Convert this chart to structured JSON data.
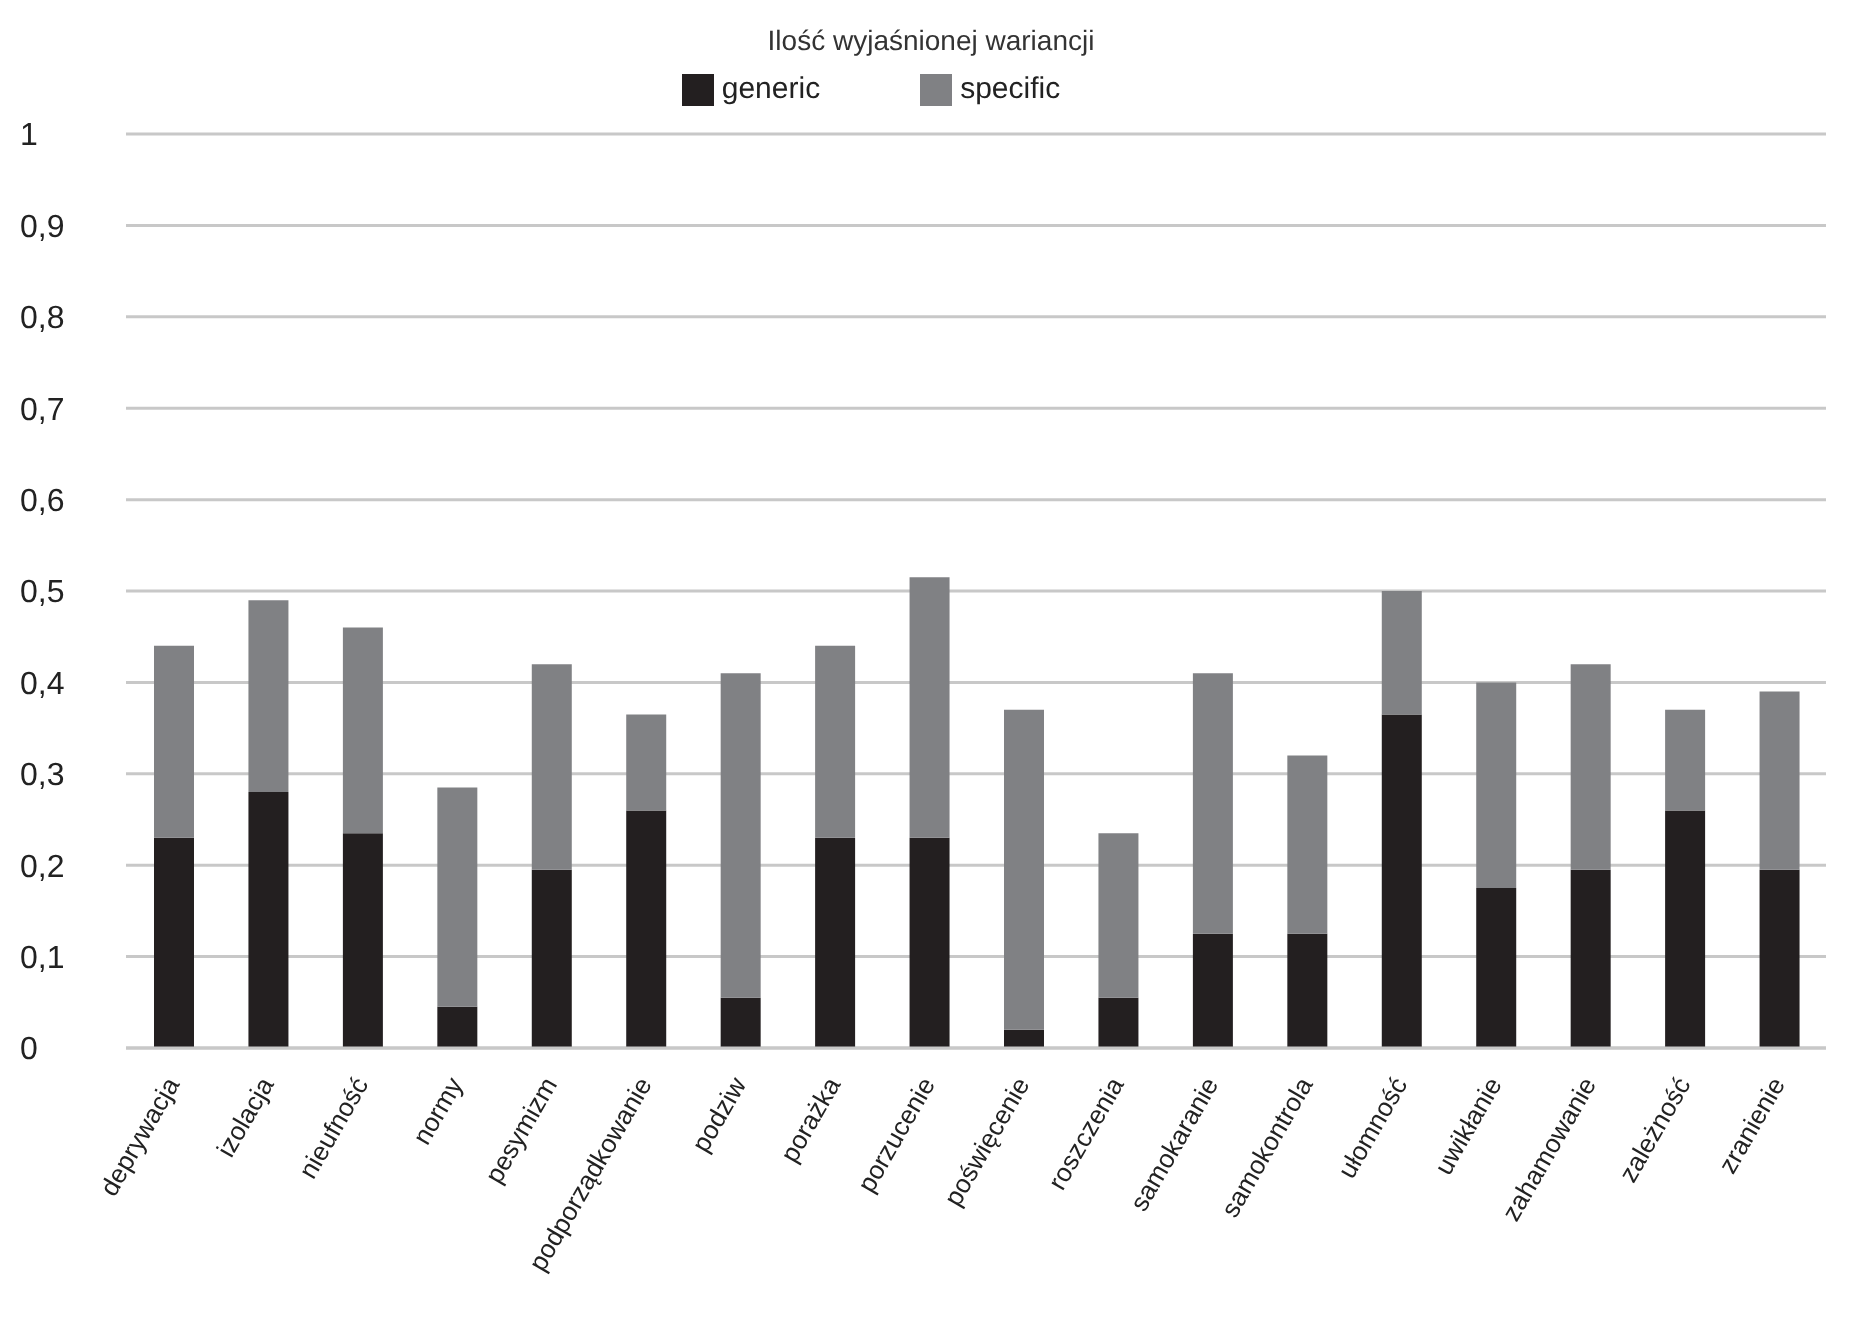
{
  "chart_data": {
    "type": "bar",
    "title": "Ilość wyjaśnionej wariancji",
    "stacked": true,
    "legend": "top",
    "grid": "y",
    "categories": [
      "deprywacja",
      "izolacja",
      "nieufność",
      "normy",
      "pesymizm",
      "podporządkowanie",
      "podziw",
      "porażka",
      "porzucenie",
      "poświęcenie",
      "roszczenia",
      "samokaranie",
      "samokontrola",
      "ułomność",
      "uwikłanie",
      "zahamowanie",
      "zależność",
      "zranienie"
    ],
    "series": [
      {
        "name": "generic",
        "color": "#231f20",
        "values": [
          0.23,
          0.28,
          0.235,
          0.045,
          0.195,
          0.26,
          0.055,
          0.23,
          0.23,
          0.02,
          0.055,
          0.125,
          0.125,
          0.365,
          0.175,
          0.195,
          0.26,
          0.195
        ]
      },
      {
        "name": "specific",
        "color": "#808184",
        "values": [
          0.21,
          0.21,
          0.225,
          0.24,
          0.225,
          0.105,
          0.355,
          0.21,
          0.285,
          0.35,
          0.18,
          0.285,
          0.195,
          0.135,
          0.225,
          0.225,
          0.11,
          0.195
        ]
      }
    ],
    "ylim": [
      0,
      1
    ],
    "yticks": [
      0,
      {
        "value": 0.1,
        "label": "0,1"
      },
      {
        "value": 0.2,
        "label": "0,2"
      },
      {
        "value": 0.3,
        "label": "0,3"
      },
      {
        "value": 0.4,
        "label": "0,4"
      },
      {
        "value": 0.5,
        "label": "0,5"
      },
      {
        "value": 0.6,
        "label": "0,6"
      },
      {
        "value": 0.7,
        "label": "0,7"
      },
      {
        "value": 0.8,
        "label": "0,8"
      },
      {
        "value": 0.9,
        "label": "0,9"
      },
      1
    ]
  }
}
